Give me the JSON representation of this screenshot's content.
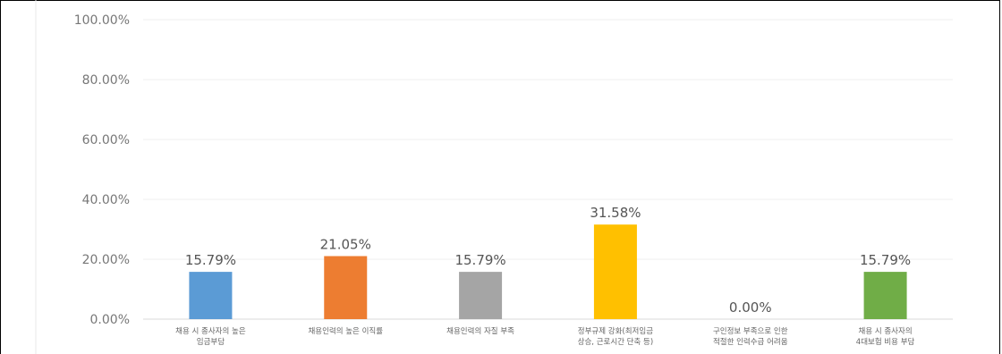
{
  "chart_data": {
    "type": "bar",
    "title": "",
    "xlabel": "",
    "ylabel": "",
    "ylim": [
      0,
      100
    ],
    "yticks": [
      "0.00%",
      "20.00%",
      "40.00%",
      "60.00%",
      "80.00%",
      "100.00%"
    ],
    "categories": [
      [
        "채용 시 종사자의 높은",
        "임금부담"
      ],
      [
        "채용인력의 높은 이직률"
      ],
      [
        "채용인력의 자질 부족"
      ],
      [
        "정부규제 강화(최저임금",
        "상승, 근로시간 단축 등)"
      ],
      [
        "구인정보 부족으로 인한",
        "적절한 인력수급 어려움"
      ],
      [
        "채용 시 종사자의",
        "4대보험 비용 부담"
      ]
    ],
    "values": [
      15.79,
      21.05,
      15.79,
      31.58,
      0.0,
      15.79
    ],
    "value_labels": [
      "15.79%",
      "21.05%",
      "15.79%",
      "31.58%",
      "0.00%",
      "15.79%"
    ],
    "colors": [
      "#5B9BD5",
      "#ED7D31",
      "#A5A5A5",
      "#FFC000",
      "#4472C4",
      "#70AD47"
    ],
    "grid": true,
    "legend": "none"
  }
}
